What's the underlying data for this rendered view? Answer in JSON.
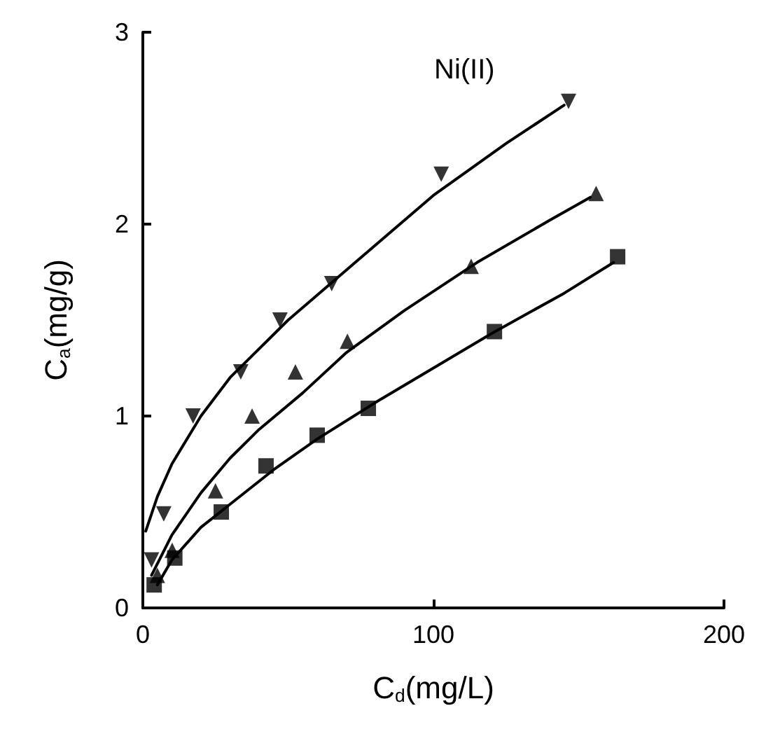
{
  "chart_data": {
    "type": "scatter",
    "xlabel": "C$_{d}$(mg/L)",
    "ylabel": "C$_{a}$(mg/g)",
    "annotations": [
      "Ni(II)"
    ],
    "xlim": [
      0,
      200
    ],
    "xticks": [
      0,
      100,
      200
    ],
    "ylim": [
      0,
      3
    ],
    "yticks": [
      0,
      1,
      2,
      3
    ],
    "grid": false,
    "series": [
      {
        "color": "#000000",
        "marker": "triangle-down",
        "x": [
          3,
          7.2,
          17.3,
          33.7,
          47.2,
          65,
          102.7,
          146.5
        ],
        "values": [
          0.25,
          0.49,
          1.0,
          1.23,
          1.5,
          1.69,
          2.26,
          2.64
        ]
      },
      {
        "color": "#000000",
        "marker": "triangle",
        "x": [
          5,
          10.1,
          25,
          37.6,
          52.5,
          70.4,
          113,
          156
        ],
        "values": [
          0.17,
          0.3,
          0.61,
          1.0,
          1.23,
          1.39,
          1.78,
          2.16
        ]
      },
      {
        "color": "#000000",
        "marker": "square",
        "x": [
          3.9,
          11,
          27,
          42.4,
          60,
          77.6,
          121,
          163.4
        ],
        "values": [
          0.12,
          0.26,
          0.5,
          0.74,
          0.9,
          1.04,
          1.44,
          1.83
        ]
      },
      {
        "type": "line",
        "color": "#000000",
        "marker": "none",
        "line_style": "solid",
        "x": [
          1,
          5,
          10,
          20,
          30,
          50,
          70,
          100,
          125,
          145
        ],
        "values": [
          0.4,
          0.58,
          0.75,
          1.0,
          1.2,
          1.5,
          1.76,
          2.15,
          2.42,
          2.62
        ]
      },
      {
        "type": "line",
        "color": "#000000",
        "marker": "none",
        "line_style": "solid",
        "x": [
          3,
          10,
          20,
          30,
          40,
          55,
          70,
          90,
          115,
          140,
          154
        ],
        "values": [
          0.17,
          0.38,
          0.6,
          0.78,
          0.93,
          1.12,
          1.33,
          1.55,
          1.8,
          2.02,
          2.14
        ]
      },
      {
        "type": "line",
        "color": "#000000",
        "marker": "none",
        "line_style": "solid",
        "x": [
          5,
          10,
          20,
          30,
          45,
          60,
          80,
          100,
          120,
          145,
          162
        ],
        "values": [
          0.12,
          0.25,
          0.42,
          0.54,
          0.72,
          0.88,
          1.07,
          1.25,
          1.43,
          1.64,
          1.8
        ]
      }
    ]
  }
}
